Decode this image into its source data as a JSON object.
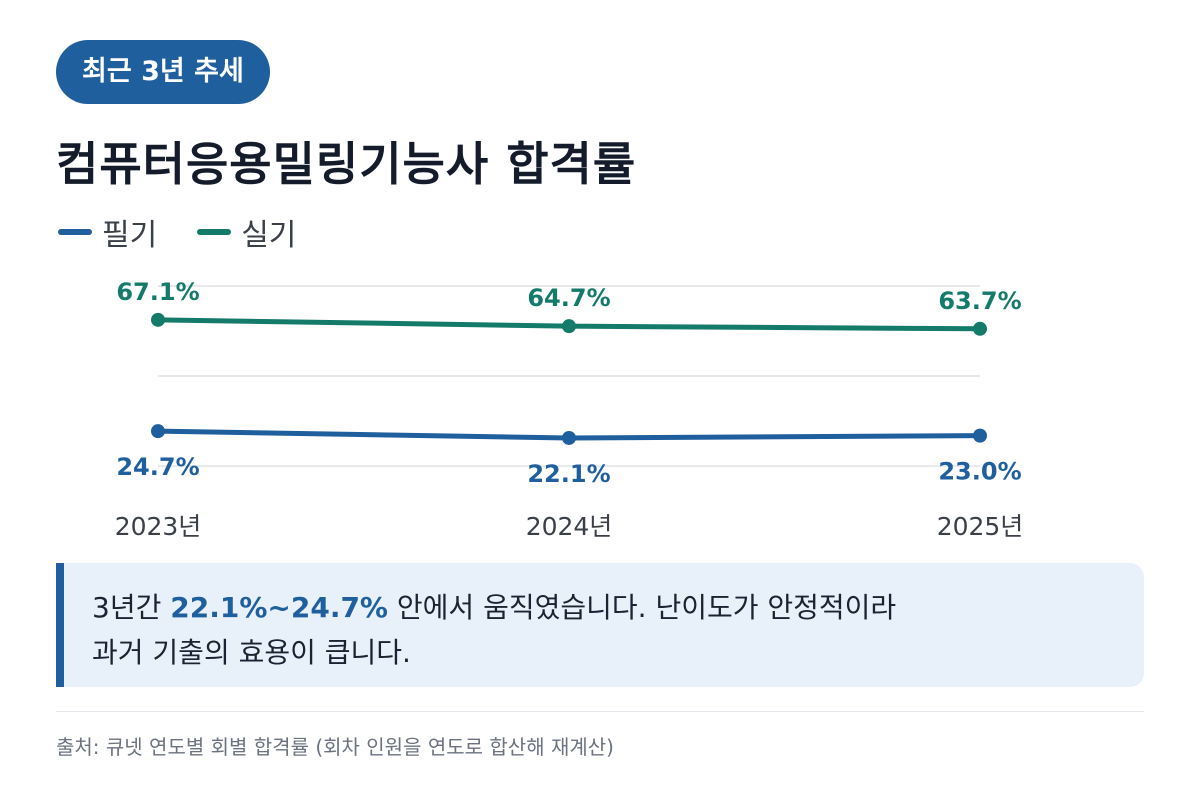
{
  "badge": "최근 3년 추세",
  "title": "컴퓨터응용밀링기능사 합격률",
  "legend": [
    {
      "label": "필기",
      "color": "#1f5f9e"
    },
    {
      "label": "실기",
      "color": "#147a6a"
    }
  ],
  "chart_data": {
    "type": "line",
    "categories": [
      "2023년",
      "2024년",
      "2025년"
    ],
    "series": [
      {
        "name": "필기",
        "values": [
          24.7,
          22.1,
          23.0
        ],
        "labels": [
          "24.7%",
          "22.1%",
          "23.0%"
        ],
        "color": "#1f5f9e",
        "label_position": "below"
      },
      {
        "name": "실기",
        "values": [
          67.1,
          64.7,
          63.7
        ],
        "labels": [
          "67.1%",
          "64.7%",
          "63.7%"
        ],
        "color": "#147a6a",
        "label_position": "above"
      }
    ],
    "ylim": [
      0,
      80
    ],
    "grid": true,
    "legend_position": "top-left"
  },
  "callout": {
    "prefix": "3년간 ",
    "highlight": "22.1%~24.7%",
    "suffix": " 안에서 움직였습니다. 난이도가 안정적이라",
    "line2": "과거 기출의 효용이 큽니다.",
    "accent_color": "#1f5f9e"
  },
  "source": "출처: 큐넷 연도별 회별 합격률 (회차 인원을 연도로 합산해 재계산)"
}
